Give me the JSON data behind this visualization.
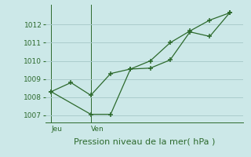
{
  "bg_color": "#cce8e8",
  "grid_color": "#aacccc",
  "line_color": "#2d6a2d",
  "line1_x": [
    0,
    1,
    2,
    3,
    4,
    5,
    6,
    7,
    8,
    9
  ],
  "line1_y": [
    1008.3,
    1008.8,
    1008.1,
    1009.3,
    1009.55,
    1010.0,
    1011.0,
    1011.65,
    1012.25,
    1012.65
  ],
  "line2_x": [
    0,
    2,
    3,
    4,
    5,
    6,
    7,
    8,
    9
  ],
  "line2_y": [
    1008.3,
    1007.05,
    1007.05,
    1009.55,
    1009.6,
    1010.05,
    1011.6,
    1011.35,
    1012.65
  ],
  "vline1_x": 0,
  "vline2_x": 2,
  "label1": "Jeu",
  "label2": "Ven",
  "xlabel": "Pression niveau de la mer( hPa )",
  "yticks": [
    1007,
    1008,
    1009,
    1010,
    1011,
    1012
  ],
  "ylim": [
    1006.6,
    1013.1
  ],
  "xlim": [
    -0.3,
    9.7
  ],
  "xlabel_fontsize": 8,
  "ytick_fontsize": 6.5,
  "day_label_fontsize": 6.5
}
